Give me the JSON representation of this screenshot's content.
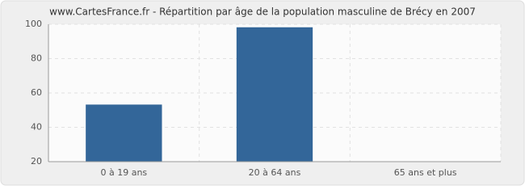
{
  "chart_data": {
    "type": "bar",
    "title": "www.CartesFrance.fr - Répartition par âge de la population masculine de Brécy en 2007",
    "categories": [
      "0 à 19 ans",
      "20 à 64 ans",
      "65 ans et plus"
    ],
    "values": [
      53,
      98,
      20
    ],
    "color": "#336699",
    "ylim": [
      20,
      100
    ],
    "yticks": [
      20,
      40,
      60,
      80,
      100
    ],
    "grid": true
  }
}
